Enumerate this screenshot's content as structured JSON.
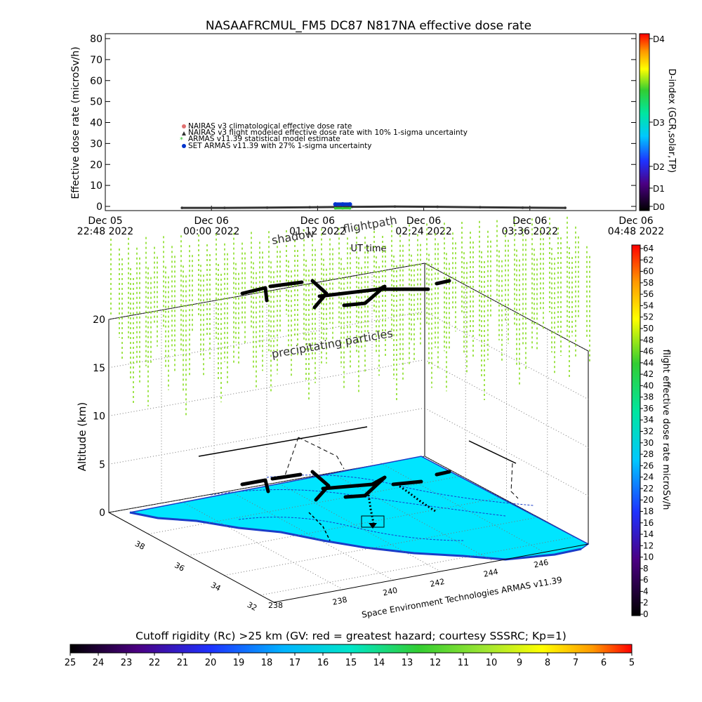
{
  "chart_data": [
    {
      "type": "line",
      "title": "NASAAFRCMUL_FM5 DC87 N817NA effective dose rate",
      "ylabel": "Effective dose rate (microSv/h)",
      "xlabel": "UT time",
      "ylim": [
        0,
        80
      ],
      "yticks": [
        "0",
        "10",
        "20",
        "30",
        "40",
        "50",
        "60",
        "70",
        "80"
      ],
      "xticks": [
        {
          "line1": "Dec 05",
          "line2": "22:48 2022"
        },
        {
          "line1": "Dec 06",
          "line2": "00:00 2022"
        },
        {
          "line1": "Dec 06",
          "line2": "01:12 2022"
        },
        {
          "line1": "Dec 06",
          "line2": "02:24 2022"
        },
        {
          "line1": "Dec 06",
          "line2": "03:36 2022"
        },
        {
          "line1": "Dec 06",
          "line2": "04:48 2022"
        }
      ],
      "legend": [
        {
          "label": "NAIRAS v3 climatological effective dose rate",
          "color": "#e07070"
        },
        {
          "label": "NAIRAS v3 flight modeled effective dose rate with 10% 1-sigma uncertainty",
          "color": "#333333"
        },
        {
          "label": "ARMAS v11.39 statistical model estimate",
          "color": "#33cc33"
        },
        {
          "label": "SET ARMAS v11.39 with 27% 1-sigma uncertainty",
          "color": "#0033cc"
        }
      ],
      "series": [
        {
          "name": "NAIRAS v3 flight modeled effective dose rate with 10% 1-sigma uncertainty",
          "x_range": [
            "Dec 05 23:40",
            "Dec 06 04:00"
          ],
          "values": [
            0.3,
            0.3,
            0.4,
            0.6,
            0.8,
            0.9,
            0.8,
            0.6,
            0.4,
            0.3
          ]
        },
        {
          "name": "SET ARMAS v11.39 with 27% 1-sigma uncertainty",
          "x_range": [
            "Dec 06 01:24",
            "Dec 06 01:34"
          ],
          "values": [
            2.0,
            2.0,
            2.0
          ]
        },
        {
          "name": "ARMAS v11.39 statistical model estimate",
          "x_range": [
            "Dec 06 01:24",
            "Dec 06 01:34"
          ],
          "values": [
            0.1,
            0.1,
            0.1
          ]
        }
      ],
      "right_axis": {
        "label": "D-index (GCR,solar,TP)",
        "ticks": [
          "D0",
          "D1",
          "D2",
          "D3",
          "D4"
        ]
      }
    },
    {
      "type": "scatter",
      "zlabel": "Altitude (km)",
      "zticks": [
        "0",
        "5",
        "10",
        "15",
        "20"
      ],
      "lat_ticks": [
        "32",
        "34",
        "36",
        "38"
      ],
      "lon_ticks": [
        "238",
        "240",
        "242",
        "244",
        "246"
      ],
      "annotations": [
        "shadow",
        "flightpath",
        "precipitating particles"
      ],
      "credit": "Space Environment Technologies ARMAS v11.39",
      "colorbar_right": {
        "label": "flight effective dose rate microSv/h",
        "ticks": [
          "0",
          "2",
          "4",
          "6",
          "8",
          "10",
          "12",
          "14",
          "16",
          "18",
          "20",
          "22",
          "24",
          "26",
          "28",
          "30",
          "32",
          "34",
          "36",
          "38",
          "40",
          "42",
          "44",
          "46",
          "48",
          "50",
          "52",
          "54",
          "56",
          "58",
          "60",
          "62",
          "64"
        ]
      },
      "colorbar_bottom": {
        "label": "Cutoff rigidity (Rc) >25 km (GV: red = greatest hazard; courtesy SSSRC; Kp=1)",
        "ticks": [
          "25",
          "24",
          "23",
          "22",
          "21",
          "20",
          "19",
          "18",
          "17",
          "16",
          "15",
          "14",
          "13",
          "12",
          "11",
          "10",
          "9",
          "8",
          "7",
          "6",
          "5"
        ]
      },
      "colors": {
        "ground": "#00e5ff",
        "coast": "#1a3cc8",
        "particles": "#88dd22"
      }
    }
  ]
}
